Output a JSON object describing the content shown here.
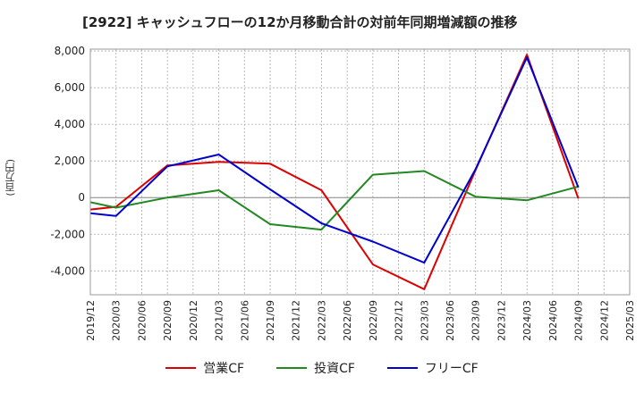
{
  "chart_data": {
    "type": "line",
    "title": "[2922]  キャッシュフローの12か月移動合計の対前年同期増減額の推移",
    "ylabel": "(百万円)",
    "xlabel": "",
    "x": [
      "2019/12",
      "2020/03",
      "2020/06",
      "2020/09",
      "2020/12",
      "2021/03",
      "2021/06",
      "2021/09",
      "2021/12",
      "2022/03",
      "2022/06",
      "2022/09",
      "2022/12",
      "2023/03",
      "2023/06",
      "2023/09",
      "2023/12",
      "2024/03",
      "2024/06",
      "2024/09",
      "2024/12",
      "2025/03"
    ],
    "ylim": [
      -5300,
      8100
    ],
    "yticks": [
      8000,
      6000,
      4000,
      2000,
      0,
      -2000,
      -4000
    ],
    "ytick_labels": [
      "8,000",
      "6,000",
      "4,000",
      "2,000",
      "0",
      "-2,000",
      "-4,000"
    ],
    "grid": true,
    "legend_position": "bottom",
    "series": [
      {
        "name": "営業CF",
        "color": "#dd0000",
        "values": [
          -650,
          -500,
          null,
          1750,
          null,
          1950,
          null,
          1850,
          null,
          400,
          null,
          -3650,
          null,
          -5000,
          null,
          1500,
          null,
          7800,
          null,
          -50,
          null,
          null
        ]
      },
      {
        "name": "投資CF",
        "color": "#228822",
        "values": [
          -250,
          -550,
          null,
          0,
          null,
          400,
          null,
          -1450,
          null,
          -1750,
          null,
          1250,
          null,
          1450,
          null,
          50,
          null,
          -150,
          null,
          600,
          null,
          null
        ]
      },
      {
        "name": "フリーCF",
        "color": "#0000cc",
        "values": [
          -850,
          -1000,
          null,
          1700,
          null,
          2350,
          null,
          450,
          null,
          -1400,
          null,
          -2400,
          null,
          -3550,
          null,
          1550,
          null,
          7650,
          null,
          550,
          null,
          null
        ]
      }
    ]
  }
}
